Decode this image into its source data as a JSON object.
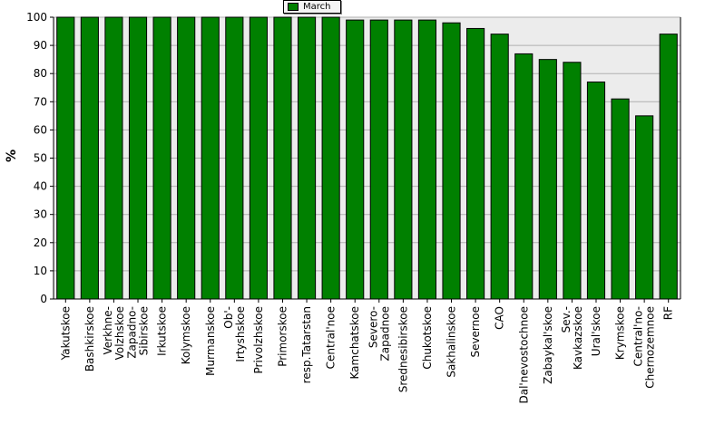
{
  "chart_data": {
    "type": "bar",
    "ylabel": "%",
    "ylim": [
      0,
      100
    ],
    "yticks": [
      "0",
      "10",
      "20",
      "30",
      "40",
      "50",
      "60",
      "70",
      "80",
      "90",
      "100"
    ],
    "grid": true,
    "legend_position": "top",
    "series": [
      {
        "name": "March",
        "color": "#008000",
        "values": [
          100,
          100,
          100,
          100,
          100,
          100,
          100,
          100,
          100,
          100,
          100,
          100,
          99,
          99,
          99,
          99,
          98,
          96,
          94,
          87,
          85,
          84,
          77,
          71,
          65,
          94
        ]
      }
    ],
    "categories": [
      [
        "Yakutskoe"
      ],
      [
        "Bashkirskoe"
      ],
      [
        "Verkhne-",
        "Volzhskoe"
      ],
      [
        "Zapadno-",
        "Sibirskoe"
      ],
      [
        "Irkutskoe"
      ],
      [
        "Kolymskoe"
      ],
      [
        "Murmanskoe"
      ],
      [
        "Ob'-",
        "Irtyshskoe"
      ],
      [
        "Privolzhskoe"
      ],
      [
        "Primorskoe"
      ],
      [
        "resp.Tatarstan"
      ],
      [
        "Central'noe"
      ],
      [
        "Kamchatskoe"
      ],
      [
        "Severo-",
        "Zapadnoe"
      ],
      [
        "Srednesibirskoe"
      ],
      [
        "Chukotskoe"
      ],
      [
        "Sakhalinskoe"
      ],
      [
        "Severnoe"
      ],
      [
        "CAO"
      ],
      [
        "Dal'nevostochnoe"
      ],
      [
        "Zabaykal'skoe"
      ],
      [
        "Sev.-",
        "Kavkazskoe"
      ],
      [
        "Ural'skoe"
      ],
      [
        "Krymskoe"
      ],
      [
        "Central'no-",
        "Chernozemnoe"
      ],
      [
        "RF"
      ]
    ]
  }
}
